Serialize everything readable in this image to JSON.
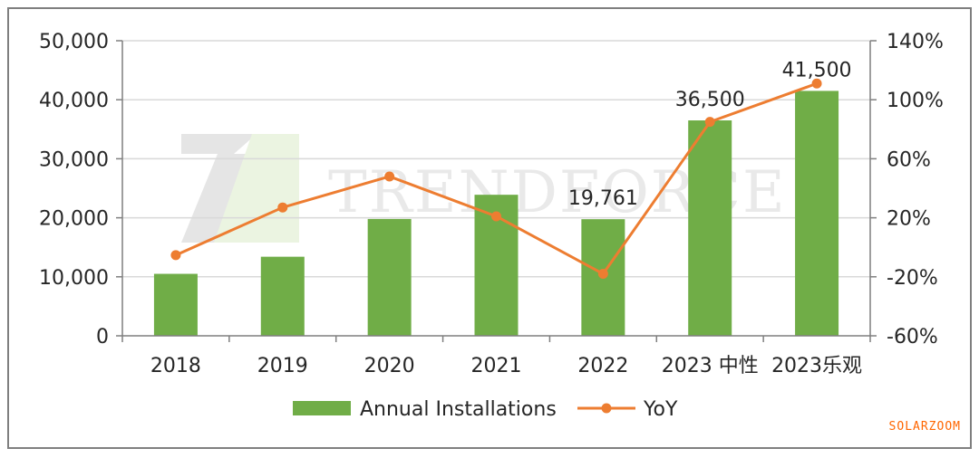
{
  "chart_data": {
    "type": "bar",
    "categories": [
      "2018",
      "2019",
      "2020",
      "2021",
      "2022",
      "2023 中性",
      "2023乐观"
    ],
    "series": [
      {
        "name": "Annual Installations",
        "type": "bar",
        "axis": "left",
        "color": "#70ad47",
        "values": [
          10500,
          13400,
          19800,
          23900,
          19761,
          36500,
          41500
        ]
      },
      {
        "name": "YoY",
        "type": "line",
        "axis": "right",
        "color": "#ed7d31",
        "values": [
          -0.053,
          0.27,
          0.48,
          0.21,
          -0.18,
          0.85,
          1.11
        ]
      }
    ],
    "data_labels": [
      {
        "index": 4,
        "text": "19,761"
      },
      {
        "index": 5,
        "text": "36,500"
      },
      {
        "index": 6,
        "text": "41,500"
      }
    ],
    "y_left": {
      "ylim": [
        0,
        50000
      ],
      "ticks": [
        0,
        10000,
        20000,
        30000,
        40000,
        50000
      ],
      "tick_labels": [
        "0",
        "10,000",
        "20,000",
        "30,000",
        "40,000",
        "50,000"
      ]
    },
    "y_right": {
      "ylim": [
        -0.6,
        1.4
      ],
      "ticks": [
        -0.6,
        -0.2,
        0.2,
        0.6,
        1.0,
        1.4
      ],
      "tick_labels": [
        "-60%",
        "-20%",
        "20%",
        "60%",
        "100%",
        "140%"
      ]
    },
    "grid": "horizontal",
    "legend_position": "bottom-center",
    "watermark": "TRENDFORCE",
    "title": "",
    "xlabel": "",
    "ylabel": ""
  },
  "source_mark": "SOLARZOOM"
}
